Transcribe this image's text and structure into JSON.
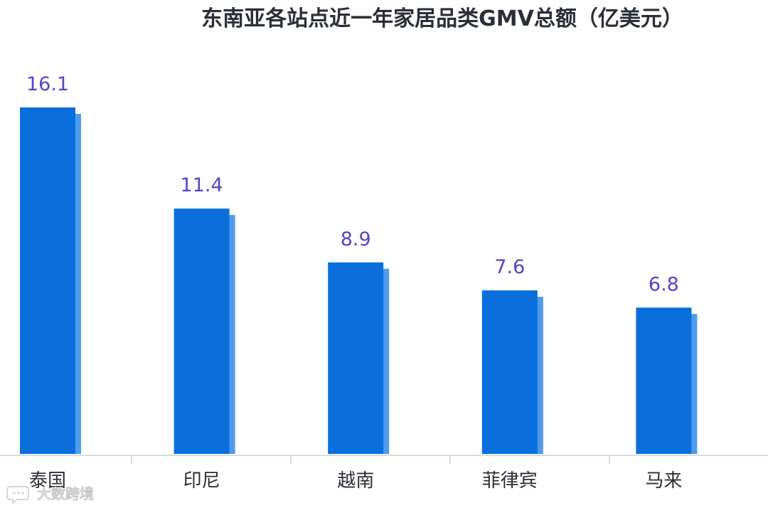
{
  "chart_data": {
    "type": "bar",
    "title": "东南亚各站点近一年家居品类GMV总额（亿美元）",
    "categories": [
      "泰国",
      "印尼",
      "越南",
      "菲律宾",
      "马来"
    ],
    "values": [
      16.1,
      11.4,
      8.9,
      7.6,
      6.8
    ],
    "value_labels": [
      "16.1",
      "11.4",
      "8.9",
      "7.6",
      "6.8"
    ],
    "xlabel": "",
    "ylabel": "",
    "ylim": [
      0,
      16.1
    ],
    "grid": false,
    "bar_color": "#0a6fdc",
    "bar_shadow_color": "#4f9bec",
    "label_color": "#5046c8"
  },
  "watermark": {
    "text": "大数跨境",
    "icon": "chat-bubble-icon"
  }
}
